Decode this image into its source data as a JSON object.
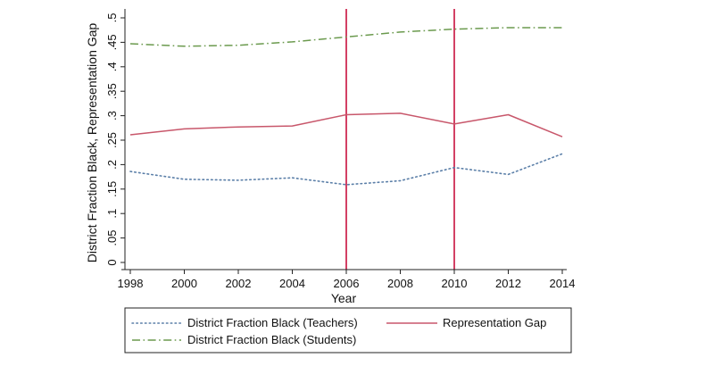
{
  "chart_data": {
    "type": "line",
    "xlabel": "Year",
    "ylabel": "District Fraction Black, Representation Gap",
    "x": [
      1998,
      2000,
      2002,
      2004,
      2006,
      2008,
      2010,
      2012,
      2014
    ],
    "xlim": [
      1998,
      2014
    ],
    "ylim": [
      0,
      0.5
    ],
    "x_ticks": [
      "1998",
      "2000",
      "2002",
      "2004",
      "2006",
      "2008",
      "2010",
      "2012",
      "2014"
    ],
    "y_ticks": [
      "0",
      ".05",
      ".1",
      ".15",
      ".2",
      ".25",
      ".3",
      ".35",
      ".4",
      ".45",
      ".5"
    ],
    "y_tick_values": [
      0,
      0.05,
      0.1,
      0.15,
      0.2,
      0.25,
      0.3,
      0.35,
      0.4,
      0.45,
      0.5
    ],
    "vertical_lines": [
      2006,
      2010
    ],
    "grid": false,
    "legend_position": "bottom",
    "series": [
      {
        "name": "District Fraction Black (Teachers)",
        "values": [
          0.186,
          0.17,
          0.168,
          0.173,
          0.159,
          0.167,
          0.194,
          0.18,
          0.222
        ],
        "color": "#5b7fa8",
        "style": "dotted"
      },
      {
        "name": "Representation Gap",
        "values": [
          0.261,
          0.273,
          0.277,
          0.279,
          0.302,
          0.305,
          0.283,
          0.302,
          0.257
        ],
        "color": "#c8576b",
        "style": "solid"
      },
      {
        "name": "District Fraction Black (Students)",
        "values": [
          0.447,
          0.442,
          0.444,
          0.451,
          0.461,
          0.471,
          0.477,
          0.48,
          0.48
        ],
        "color": "#6b9a4e",
        "style": "dashdot"
      }
    ],
    "colors": {
      "reference_line": "#c8103e",
      "axis": "#222222"
    }
  }
}
